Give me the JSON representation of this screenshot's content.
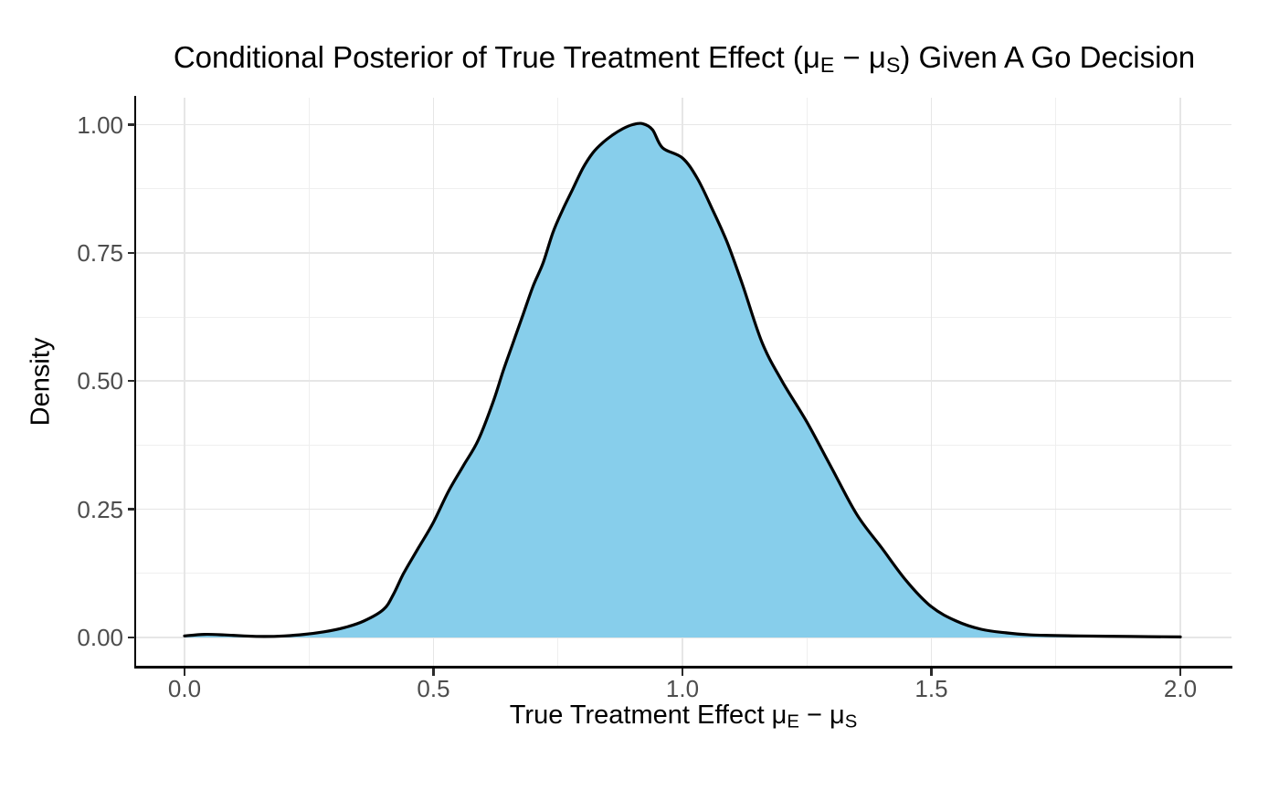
{
  "chart": {
    "title_parts": {
      "pre": "Conditional Posterior of True Treatment Effect (μ",
      "sub1": "E",
      "mid": " − μ",
      "sub2": "S",
      "post": ") Given A Go Decision"
    },
    "xlabel_parts": {
      "pre": "True Treatment Effect μ",
      "sub1": "E",
      "mid": " − μ",
      "sub2": "S",
      "post": ""
    },
    "ylabel": "Density"
  },
  "chart_data": {
    "type": "area",
    "title": "Conditional Posterior of True Treatment Effect (μE − μS) Given A Go Decision",
    "xlabel": "True Treatment Effect μE − μS",
    "ylabel": "Density",
    "xlim": [
      0,
      2
    ],
    "ylim": [
      0,
      1.0
    ],
    "x_ticks": {
      "values": [
        0.0,
        0.5,
        1.0,
        1.5,
        2.0
      ],
      "labels": [
        "0.0",
        "0.5",
        "1.0",
        "1.5",
        "2.0"
      ]
    },
    "y_ticks": {
      "values": [
        0.0,
        0.25,
        0.5,
        0.75,
        1.0
      ],
      "labels": [
        "0.00",
        "0.25",
        "0.50",
        "0.75",
        "1.00"
      ]
    },
    "x_minor": [
      0.25,
      0.75,
      1.25,
      1.75
    ],
    "y_minor": [
      0.125,
      0.375,
      0.625,
      0.875
    ],
    "grid": "major-and-minor",
    "legend": false,
    "colors": {
      "fill": "#87CEEB",
      "line": "#000000",
      "grid_major": "#e6e6e6",
      "grid_minor": "#efefef",
      "axis_line": "#000000",
      "tick_text": "#4d4d4d"
    },
    "series": [
      {
        "name": "conditional-posterior-density",
        "peak_x": 0.91,
        "peak_density": 1.0,
        "x": [
          0.0,
          0.04,
          0.08,
          0.12,
          0.16,
          0.2,
          0.24,
          0.28,
          0.32,
          0.36,
          0.4,
          0.42,
          0.44,
          0.47,
          0.5,
          0.53,
          0.56,
          0.59,
          0.62,
          0.64,
          0.66,
          0.68,
          0.7,
          0.72,
          0.74,
          0.76,
          0.78,
          0.8,
          0.82,
          0.84,
          0.86,
          0.88,
          0.9,
          0.92,
          0.94,
          0.96,
          1.0,
          1.03,
          1.06,
          1.09,
          1.12,
          1.16,
          1.2,
          1.25,
          1.3,
          1.35,
          1.4,
          1.45,
          1.5,
          1.55,
          1.6,
          1.65,
          1.7,
          1.8,
          1.9,
          2.0
        ],
        "density": [
          0.003,
          0.006,
          0.005,
          0.003,
          0.002,
          0.003,
          0.006,
          0.011,
          0.019,
          0.032,
          0.055,
          0.085,
          0.125,
          0.175,
          0.225,
          0.285,
          0.335,
          0.385,
          0.46,
          0.52,
          0.575,
          0.63,
          0.685,
          0.73,
          0.79,
          0.835,
          0.875,
          0.915,
          0.945,
          0.965,
          0.98,
          0.992,
          1.0,
          1.002,
          0.99,
          0.955,
          0.935,
          0.895,
          0.835,
          0.77,
          0.69,
          0.575,
          0.5,
          0.42,
          0.33,
          0.24,
          0.175,
          0.11,
          0.06,
          0.032,
          0.016,
          0.009,
          0.005,
          0.003,
          0.002,
          0.001
        ]
      }
    ]
  }
}
